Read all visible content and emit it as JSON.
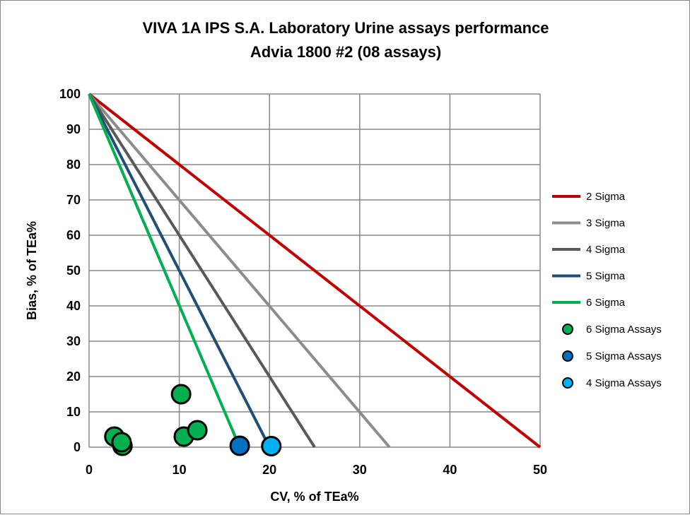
{
  "chart_data": {
    "type": "scatter",
    "title": "VIVA 1A IPS S.A. Laboratory Urine assays performance",
    "subtitle": "Advia 1800 #2 (08 assays)",
    "xlabel": "CV, % of TEa%",
    "ylabel": "Bias, % of TEa%",
    "xlim": [
      0,
      50
    ],
    "ylim": [
      0,
      100
    ],
    "xticks": [
      0,
      10,
      20,
      30,
      40,
      50
    ],
    "yticks": [
      0,
      10,
      20,
      30,
      40,
      50,
      60,
      70,
      80,
      90,
      100
    ],
    "grid": true,
    "legend_position": "right",
    "lines": [
      {
        "name": "2 Sigma",
        "color": "#C00000",
        "x": [
          0,
          50
        ],
        "y": [
          100,
          0
        ]
      },
      {
        "name": "3 Sigma",
        "color": "#8C8C8C",
        "x": [
          0,
          33.3
        ],
        "y": [
          100,
          0
        ]
      },
      {
        "name": "4 Sigma",
        "color": "#595959",
        "x": [
          0,
          25
        ],
        "y": [
          100,
          0
        ]
      },
      {
        "name": "5 Sigma",
        "color": "#1F4E79",
        "x": [
          0,
          20
        ],
        "y": [
          100,
          0
        ]
      },
      {
        "name": "6 Sigma",
        "color": "#00B050",
        "x": [
          0,
          16.7
        ],
        "y": [
          100,
          0
        ]
      }
    ],
    "scatter": [
      {
        "name": "6 Sigma Assays",
        "color": "#00B050",
        "points": [
          [
            10.2,
            15
          ],
          [
            2.8,
            3
          ],
          [
            3.7,
            0.4
          ],
          [
            3.6,
            1.4
          ],
          [
            10.5,
            3
          ],
          [
            12,
            4.8
          ]
        ]
      },
      {
        "name": "5 Sigma Assays",
        "color": "#0070C0",
        "points": [
          [
            16.7,
            0.4
          ]
        ]
      },
      {
        "name": "4 Sigma Assays",
        "color": "#00B0F0",
        "points": [
          [
            20.2,
            0.3
          ]
        ]
      }
    ]
  }
}
